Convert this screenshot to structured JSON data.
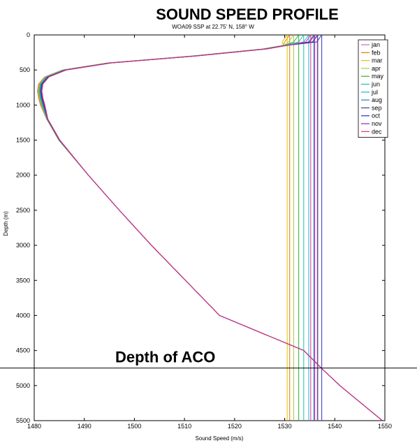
{
  "chart_data": {
    "type": "line",
    "title": "SOUND SPEED PROFILE",
    "subtitle": "WOA09 SSP at 22.75' N, 158° W",
    "xlabel": "Sound Speed (m/s)",
    "ylabel": "Depth (m)",
    "xlim": [
      1480,
      1550
    ],
    "ylim": [
      0,
      5500
    ],
    "y_reversed": true,
    "xticks": [
      "1480",
      "1490",
      "1500",
      "1510",
      "1520",
      "1530",
      "1540",
      "1550"
    ],
    "yticks": [
      "0",
      "500",
      "1000",
      "1500",
      "2000",
      "2500",
      "3000",
      "3500",
      "4000",
      "4500",
      "5000",
      "5500"
    ],
    "grid": false,
    "legend_position": "top-right",
    "profile_depths": [
      0,
      50,
      100,
      150,
      200,
      300,
      400,
      500,
      600,
      700,
      800,
      900,
      1000,
      1200,
      1500,
      2000,
      2500,
      3000,
      3500,
      4000,
      4500,
      4750,
      5000,
      5500
    ],
    "deep_speeds": [
      1535.0,
      1534.5,
      1533.6,
      1530.0,
      1526.0,
      1512.0,
      1495.0,
      1486.0,
      1482.5,
      1481.3,
      1481.1,
      1481.3,
      1481.7,
      1482.6,
      1485.0,
      1490.8,
      1497.0,
      1503.4,
      1510.2,
      1517.0,
      1533.8,
      1537.3,
      1541.0,
      1549.5
    ],
    "series": [
      {
        "name": "jan",
        "color": "#cc66cc",
        "surface_speed": 1536.5
      },
      {
        "name": "feb",
        "color": "#e07800",
        "surface_speed": 1531.0
      },
      {
        "name": "mar",
        "color": "#e0c000",
        "surface_speed": 1530.5
      },
      {
        "name": "apr",
        "color": "#a0d040",
        "surface_speed": 1531.8
      },
      {
        "name": "may",
        "color": "#30b030",
        "surface_speed": 1532.8
      },
      {
        "name": "jun",
        "color": "#20c0a0",
        "surface_speed": 1533.8
      },
      {
        "name": "jul",
        "color": "#20b0e0",
        "surface_speed": 1534.8
      },
      {
        "name": "aug",
        "color": "#2080c0",
        "surface_speed": 1535.8
      },
      {
        "name": "sep",
        "color": "#404080",
        "surface_speed": 1536.6
      },
      {
        "name": "oct",
        "color": "#3030c0",
        "surface_speed": 1537.4
      },
      {
        "name": "nov",
        "color": "#a020a0",
        "surface_speed": 1536.0
      },
      {
        "name": "dec",
        "color": "#e03080",
        "surface_speed": 1535.2
      }
    ],
    "annotations": [
      {
        "text": "Depth of ACO",
        "depth": 4750
      }
    ]
  }
}
